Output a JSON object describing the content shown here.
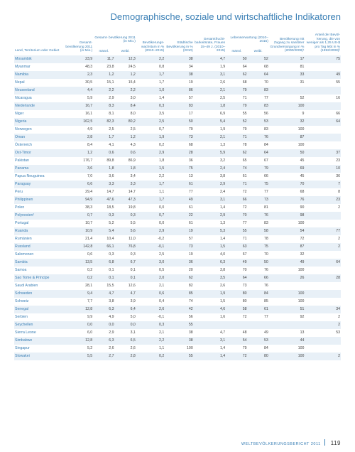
{
  "page_title": "Demographische, soziale und wirtschaftliche Indikatoren",
  "footer_text": "WELTBEVÖLKERUNGSBERICHT 2011",
  "page_number": "119",
  "columns": {
    "country": "Land, Territorium\noder Gebiet",
    "pop": "Gesamt-\nbevölkerung\n2011\n(in Mio.)",
    "proj": "Gesamt-\nbevölkerung 2011\n(in Mio.)",
    "proj_m": "männl.",
    "proj_w": "weibl.",
    "growth": "Bevölkerungs-\nwachstum\nin %\n(2010–2015)",
    "urban": "Städtische\nBevölkerung in %\n(2010)",
    "fert": "Gesamtfrucht-\nbarkeitsrate,\nFrauen 15–49 J.\n(2010–2015)",
    "le": "Lebenserwartung\n(2010–2015)",
    "le_m": "männl.",
    "le_w": "weibl.",
    "school": "Bevölkerung mit\nZugang zu sanitärer\nGrundversorgung\nin %\n(2000/2008)¹",
    "pov": "Anteil der Bevöl-\nkerung, die von\nweniger als 1,25 US-$\npro Tag lebt in %\n(1992/2008)²"
  },
  "rows": [
    [
      "Mosambik",
      "23,9",
      "11,7",
      "12,3",
      "2,2",
      "38",
      "4,7",
      "50",
      "52",
      "17",
      "75"
    ],
    [
      "Myanmar",
      "48,3",
      "23,8",
      "24,5",
      "0,8",
      "34",
      "1,9",
      "64",
      "68",
      "81",
      ""
    ],
    [
      "Namibia",
      "2,3",
      "1,2",
      "1,2",
      "1,7",
      "38",
      "3,1",
      "62",
      "64",
      "33",
      "49"
    ],
    [
      "Nepal",
      "30,5",
      "15,1",
      "15,4",
      "1,7",
      "19",
      "2,6",
      "68",
      "70",
      "31",
      "55"
    ],
    [
      "Neuseeland",
      "4,4",
      "2,2",
      "2,2",
      "1,0",
      "86",
      "2,1",
      "79",
      "83",
      "",
      ""
    ],
    [
      "Nicaragua",
      "5,9",
      "2,9",
      "3,0",
      "1,4",
      "57",
      "2,5",
      "71",
      "77",
      "52",
      "16"
    ],
    [
      "Niederlande",
      "16,7",
      "8,3",
      "8,4",
      "0,3",
      "83",
      "1,8",
      "79",
      "83",
      "100",
      ""
    ],
    [
      "Niger",
      "16,1",
      "8,1",
      "8,0",
      "3,5",
      "17",
      "6,9",
      "55",
      "56",
      "9",
      "66"
    ],
    [
      "Nigeria",
      "162,5",
      "82,3",
      "80,2",
      "2,5",
      "50",
      "5,4",
      "52",
      "53",
      "32",
      "64"
    ],
    [
      "Norwegen",
      "4,9",
      "2,5",
      "2,5",
      "0,7",
      "79",
      "1,9",
      "79",
      "83",
      "100",
      ""
    ],
    [
      "Oman",
      "2,8",
      "1,7",
      "1,2",
      "1,9",
      "73",
      "2,1",
      "71",
      "76",
      "87",
      ""
    ],
    [
      "Österreich",
      "8,4",
      "4,1",
      "4,3",
      "0,2",
      "68",
      "1,3",
      "78",
      "84",
      "100",
      ""
    ],
    [
      "Ost-Timor",
      "1,2",
      "0,6",
      "0,6",
      "2,9",
      "28",
      "5,9",
      "62",
      "64",
      "50",
      "37"
    ],
    [
      "Pakistan",
      "176,7",
      "89,8",
      "86,9",
      "1,8",
      "36",
      "3,2",
      "65",
      "67",
      "45",
      "23"
    ],
    [
      "Panama",
      "3,6",
      "1,8",
      "1,8",
      "1,5",
      "75",
      "2,4",
      "74",
      "79",
      "69",
      "10"
    ],
    [
      "Papua Neuguinea",
      "7,0",
      "3,6",
      "3,4",
      "2,2",
      "13",
      "3,8",
      "61",
      "66",
      "45",
      "36"
    ],
    [
      "Paraguay",
      "6,6",
      "3,3",
      "3,3",
      "1,7",
      "61",
      "2,9",
      "71",
      "75",
      "70",
      "7"
    ],
    [
      "Peru",
      "29,4",
      "14,7",
      "14,7",
      "1,1",
      "77",
      "2,4",
      "72",
      "77",
      "68",
      "8"
    ],
    [
      "Philippinen",
      "94,9",
      "47,6",
      "47,3",
      "1,7",
      "49",
      "3,1",
      "66",
      "73",
      "76",
      "23"
    ],
    [
      "Polen",
      "38,3",
      "18,5",
      "19,8",
      "0,0",
      "61",
      "1,4",
      "72",
      "81",
      "90",
      "2"
    ],
    [
      "Polynesien¹",
      "0,7",
      "0,3",
      "0,3",
      "0,7",
      "22",
      "2,9",
      "70",
      "76",
      "98",
      ""
    ],
    [
      "Portugal",
      "10,7",
      "5,2",
      "5,5",
      "0,0",
      "61",
      "1,3",
      "77",
      "83",
      "100",
      ""
    ],
    [
      "Ruanda",
      "10,9",
      "5,4",
      "5,6",
      "2,9",
      "19",
      "5,3",
      "55",
      "58",
      "54",
      "77"
    ],
    [
      "Rumänien",
      "21,4",
      "10,4",
      "11,0",
      "-0,2",
      "57",
      "1,4",
      "71",
      "78",
      "72",
      "2"
    ],
    [
      "Russland",
      "142,8",
      "66,1",
      "76,8",
      "-0,1",
      "73",
      "1,5",
      "63",
      "75",
      "87",
      "2"
    ],
    [
      "Salomonen",
      "0,6",
      "0,3",
      "0,3",
      "2,5",
      "19",
      "4,0",
      "67",
      "70",
      "32",
      ""
    ],
    [
      "Sambia",
      "13,5",
      "6,8",
      "6,7",
      "3,0",
      "36",
      "6,3",
      "49",
      "50",
      "49",
      "64"
    ],
    [
      "Samoa",
      "0,2",
      "0,1",
      "0,1",
      "0,5",
      "20",
      "3,8",
      "70",
      "76",
      "100",
      ""
    ],
    [
      "Sao Tome & Principe",
      "0,2",
      "0,1",
      "0,1",
      "2,0",
      "62",
      "3,5",
      "64",
      "66",
      "26",
      "28"
    ],
    [
      "Saudi Arabien",
      "28,1",
      "15,5",
      "12,6",
      "2,1",
      "82",
      "2,6",
      "73",
      "76",
      "",
      ""
    ],
    [
      "Schweden",
      "9,4",
      "4,7",
      "4,7",
      "0,6",
      "85",
      "1,9",
      "80",
      "84",
      "100",
      ""
    ],
    [
      "Schweiz",
      "7,7",
      "3,8",
      "3,9",
      "0,4",
      "74",
      "1,5",
      "80",
      "85",
      "100",
      ""
    ],
    [
      "Senegal",
      "12,8",
      "6,3",
      "6,4",
      "2,6",
      "42",
      "4,6",
      "58",
      "61",
      "51",
      "34"
    ],
    [
      "Serbien",
      "9,9",
      "4,9",
      "5,0",
      "-0,1",
      "56",
      "1,6",
      "72",
      "77",
      "92",
      "2"
    ],
    [
      "Seychellen",
      "0,0",
      "0,0",
      "0,0",
      "0,3",
      "55",
      "",
      "",
      "",
      "",
      "2"
    ],
    [
      "Sierra Leone",
      "6,0",
      "2,9",
      "3,1",
      "2,1",
      "38",
      "4,7",
      "48",
      "49",
      "13",
      "53"
    ],
    [
      "Simbabwe",
      "12,8",
      "6,3",
      "6,5",
      "2,2",
      "38",
      "3,1",
      "54",
      "53",
      "44",
      ""
    ],
    [
      "Singapur",
      "5,2",
      "2,6",
      "2,6",
      "1,1",
      "100",
      "1,4",
      "79",
      "84",
      "100",
      ""
    ],
    [
      "Slowakei",
      "5,5",
      "2,7",
      "2,8",
      "0,2",
      "55",
      "1,4",
      "72",
      "80",
      "100",
      "2"
    ]
  ]
}
